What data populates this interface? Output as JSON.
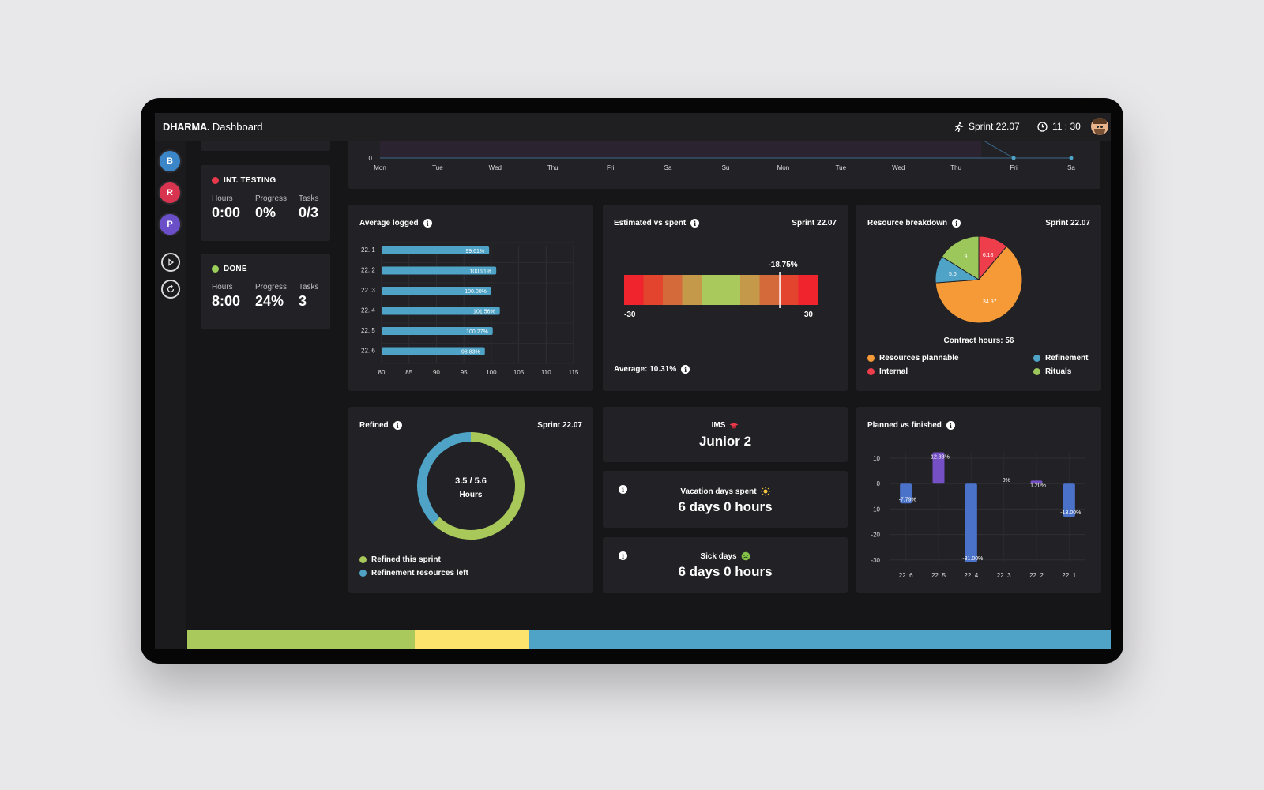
{
  "header": {
    "brand": "DHARMA.",
    "title": "Dashboard",
    "sprint": "Sprint 22.07",
    "time": "11 : 30"
  },
  "sidebar": {
    "avatars": [
      {
        "letter": "B",
        "color": "#3b86c9"
      },
      {
        "letter": "R",
        "color": "#d9344f"
      },
      {
        "letter": "P",
        "color": "#6a4fc9"
      }
    ]
  },
  "status_cards": [
    {
      "title": "INT. TESTING",
      "color": "#e8394a",
      "hours_label": "Hours",
      "progress_label": "Progress",
      "tasks_label": "Tasks",
      "hours": "0:00",
      "progress": "0%",
      "tasks": "0/3"
    },
    {
      "title": "DONE",
      "color": "#9ccf5a",
      "hours_label": "Hours",
      "progress_label": "Progress",
      "tasks_label": "Tasks",
      "hours": "8:00",
      "progress": "24%",
      "tasks": "3"
    }
  ],
  "timeline": {
    "y_label": "0",
    "days": [
      "Mon",
      "Tue",
      "Wed",
      "Thu",
      "Fri",
      "Sa",
      "Su",
      "Mon",
      "Tue",
      "Wed",
      "Thu",
      "Fri",
      "Sa"
    ]
  },
  "average_logged": {
    "title": "Average logged",
    "chart_data": {
      "type": "bar",
      "orientation": "horizontal",
      "categories": [
        "22. 1",
        "22. 2",
        "22. 3",
        "22. 4",
        "22. 5",
        "22. 6"
      ],
      "values": [
        99.61,
        100.91,
        100.0,
        101.56,
        100.27,
        98.83
      ],
      "data_labels": [
        "99.61%",
        "100.91%",
        "100.00%",
        "101.56%",
        "100.27%",
        "98.83%"
      ],
      "xlim": [
        80,
        115
      ],
      "xticks": [
        "80",
        "85",
        "90",
        "95",
        "100",
        "105",
        "110",
        "115"
      ],
      "grid": true
    }
  },
  "estimated_vs_spent": {
    "title": "Estimated vs spent",
    "sprint": "Sprint 22.07",
    "marker_label": "-18.75%",
    "marker_value": -18.75,
    "min_label": "-30",
    "max_label": "30",
    "gradient_colors": [
      "#f0242c",
      "#e2442e",
      "#d46a3a",
      "#c49a4a",
      "#a9c95c",
      "#a9c95c",
      "#c49a4a",
      "#d46a3a",
      "#e2442e",
      "#f0242c"
    ],
    "average": "Average: 10.31%"
  },
  "resource_breakdown": {
    "title": "Resource breakdown",
    "sprint": "Sprint 22.07",
    "chart_data": {
      "type": "pie",
      "slices": [
        {
          "label": "Internal",
          "value": 6.18,
          "text": "6.18",
          "color": "#ee3d4b"
        },
        {
          "label": "Resources plannable",
          "value": 34.97,
          "text": "34.97",
          "color": "#f59a36"
        },
        {
          "label": "Refinement",
          "value": 5.6,
          "text": "5.6",
          "color": "#4ea3c6"
        },
        {
          "label": "Rituals",
          "value": 9,
          "text": "9",
          "color": "#9cc75b"
        }
      ]
    },
    "contract_hours": "Contract hours:  56",
    "legend": [
      {
        "label": "Resources plannable",
        "color": "#f59a36"
      },
      {
        "label": "Refinement",
        "color": "#4ea3c6"
      },
      {
        "label": "Internal",
        "color": "#ee3d4b"
      },
      {
        "label": "Rituals",
        "color": "#9cc75b"
      }
    ]
  },
  "refined": {
    "title": "Refined",
    "sprint": "Sprint 22.07",
    "center_value": "3.5 / 5.6",
    "center_unit": "Hours",
    "chart_data": {
      "type": "donut",
      "slices": [
        {
          "label": "Refined this sprint",
          "value": 3.5,
          "color": "#a8c95a"
        },
        {
          "label": "Refinement resources left",
          "value": 2.1,
          "color": "#4ea3c6"
        }
      ]
    }
  },
  "ims": {
    "label": "IMS",
    "value": "Junior 2"
  },
  "vacation": {
    "label": "Vacation days spent",
    "value": "6 days 0 hours"
  },
  "sick": {
    "label": "Sick days",
    "value": "6 days 0 hours"
  },
  "planned_vs_finished": {
    "title": "Planned vs finished",
    "chart_data": {
      "type": "bar",
      "categories": [
        "22. 6",
        "22. 5",
        "22. 4",
        "22. 3",
        "22. 2",
        "22. 1"
      ],
      "values": [
        -7.79,
        12.33,
        -31.0,
        0,
        1.2,
        -13.0
      ],
      "data_labels": [
        "-7.79%",
        "12.33%",
        "-31.00%",
        "0%",
        "1.20%",
        "-13.00%"
      ],
      "ylim": [
        -30,
        10
      ],
      "yticks": [
        "10",
        "0",
        "-10",
        "-20",
        "-30"
      ],
      "grid": true
    }
  },
  "progress_bar": {
    "segments": [
      {
        "value": 0.246,
        "color": "#a9c95c"
      },
      {
        "value": 0.124,
        "color": "#fbe36e"
      },
      {
        "value": 0.63,
        "color": "#4ea3c6"
      }
    ]
  }
}
